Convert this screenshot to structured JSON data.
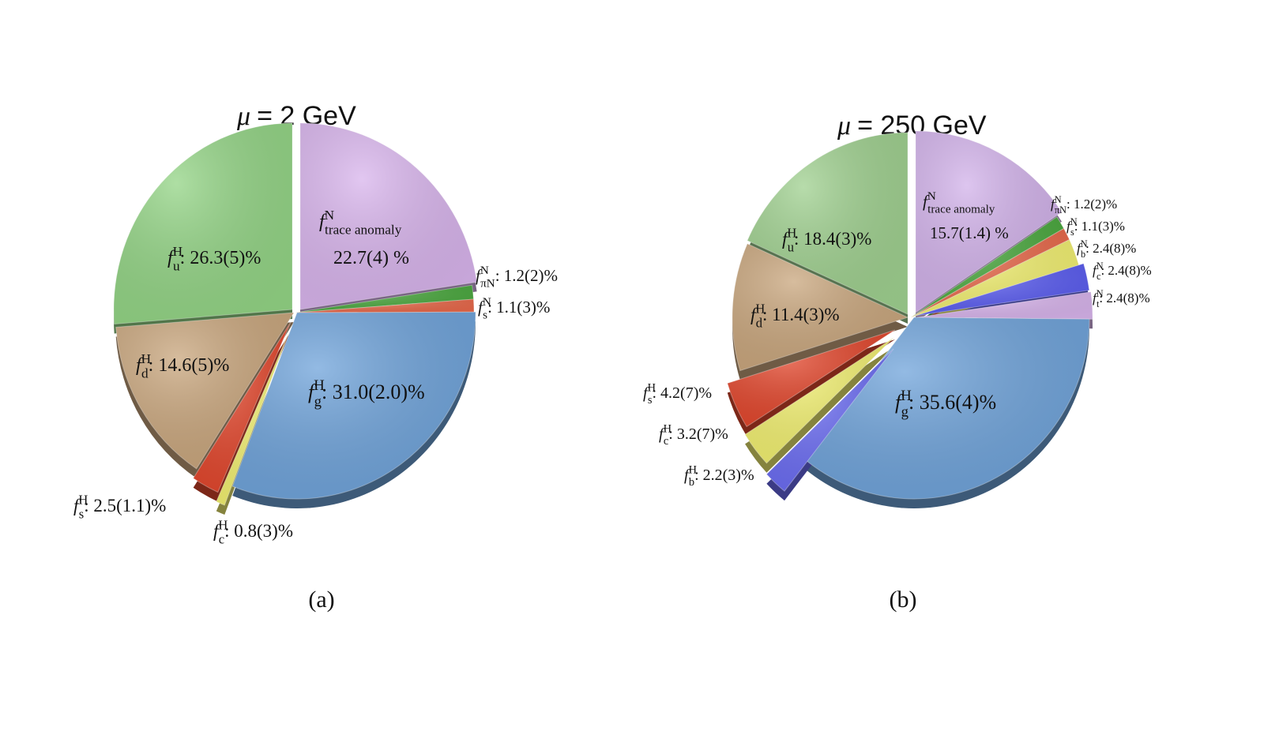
{
  "chart_data": [
    {
      "type": "pie",
      "title": "μ = 2 GeV",
      "title_symbol": "μ",
      "title_rest": "= 2 GeV",
      "caption": "(a)",
      "slices": [
        {
          "id": "trace",
          "f": "f",
          "sup": "N",
          "sub": "trace anomaly",
          "value_text": "22.7(4) %",
          "value": 22.7,
          "color": "#d8b4ec"
        },
        {
          "id": "piN",
          "f": "f",
          "sup": "N",
          "sub": "πN",
          "value_text": ": 1.2(2)%",
          "value": 1.2,
          "color": "#4aa83e"
        },
        {
          "id": "sN",
          "f": "f",
          "sup": "N",
          "sub": "s",
          "value_text": ": 1.1(3)%",
          "value": 1.1,
          "color": "#e8684a"
        },
        {
          "id": "g",
          "f": "f",
          "sup": "H",
          "sub": "g",
          "value_text": ": 31.0(2.0)%",
          "value": 31.0,
          "color": "#6fa3da"
        },
        {
          "id": "cH",
          "f": "f",
          "sup": "H",
          "sub": "c",
          "value_text": ": 0.8(3)%",
          "value": 0.8,
          "color": "#f1ef70"
        },
        {
          "id": "sH",
          "f": "f",
          "sup": "H",
          "sub": "s",
          "value_text": ": 2.5(1.1)%",
          "value": 2.5,
          "color": "#e2462c"
        },
        {
          "id": "d",
          "f": "f",
          "sup": "H",
          "sub": "d",
          "value_text": ": 14.6(5)%",
          "value": 14.6,
          "color": "#c9a67d"
        },
        {
          "id": "u",
          "f": "f",
          "sup": "H",
          "sub": "u",
          "value_text": ": 26.3(5)%",
          "value": 26.3,
          "color": "#93d485"
        }
      ]
    },
    {
      "type": "pie",
      "title": "μ = 250 GeV",
      "title_symbol": "μ",
      "title_rest": "= 250 GeV",
      "caption": "(b)",
      "slices": [
        {
          "id": "trace",
          "f": "f",
          "sup": "N",
          "sub": "trace anomaly",
          "value_text": "15.7(1.4) %",
          "value": 15.7,
          "color": "#d2b2ea"
        },
        {
          "id": "piN",
          "f": "f",
          "sup": "N",
          "sub": "πN",
          "value_text": ": 1.2(2)%",
          "value": 1.2,
          "color": "#4aa83e"
        },
        {
          "id": "sN",
          "f": "f",
          "sup": "N",
          "sub": "s",
          "value_text": ": 1.1(3)%",
          "value": 1.1,
          "color": "#e8684a"
        },
        {
          "id": "bN",
          "f": "f",
          "sup": "N",
          "sub": "b",
          "value_text": ": 2.4(8)%",
          "value": 2.4,
          "color": "#f1ef70"
        },
        {
          "id": "cN",
          "f": "f",
          "sup": "N",
          "sub": "c",
          "value_text": ": 2.4(8)%",
          "value": 2.4,
          "color": "#5a5cf0"
        },
        {
          "id": "tN",
          "f": "f",
          "sup": "N",
          "sub": "t",
          "value_text": ": 2.4(8)%",
          "value": 2.4,
          "color": "#d8b4ec"
        },
        {
          "id": "g",
          "f": "f",
          "sup": "H",
          "sub": "g",
          "value_text": ": 35.6(4)%",
          "value": 35.6,
          "color": "#6fa3da"
        },
        {
          "id": "bH",
          "f": "f",
          "sup": "H",
          "sub": "b",
          "value_text": ": 2.2(3)%",
          "value": 2.2,
          "color": "#6b6cf2"
        },
        {
          "id": "cH",
          "f": "f",
          "sup": "H",
          "sub": "c",
          "value_text": ": 3.2(7)%",
          "value": 3.2,
          "color": "#f1ef70"
        },
        {
          "id": "sH",
          "f": "f",
          "sup": "H",
          "sub": "s",
          "value_text": ": 4.2(7)%",
          "value": 4.2,
          "color": "#e2462c"
        },
        {
          "id": "d",
          "f": "f",
          "sup": "H",
          "sub": "d",
          "value_text": ": 11.4(3)%",
          "value": 11.4,
          "color": "#c9a67d"
        },
        {
          "id": "u",
          "f": "f",
          "sup": "H",
          "sub": "u",
          "value_text": ": 18.4(3)%",
          "value": 18.4,
          "color": "#9fd08f"
        }
      ]
    }
  ]
}
